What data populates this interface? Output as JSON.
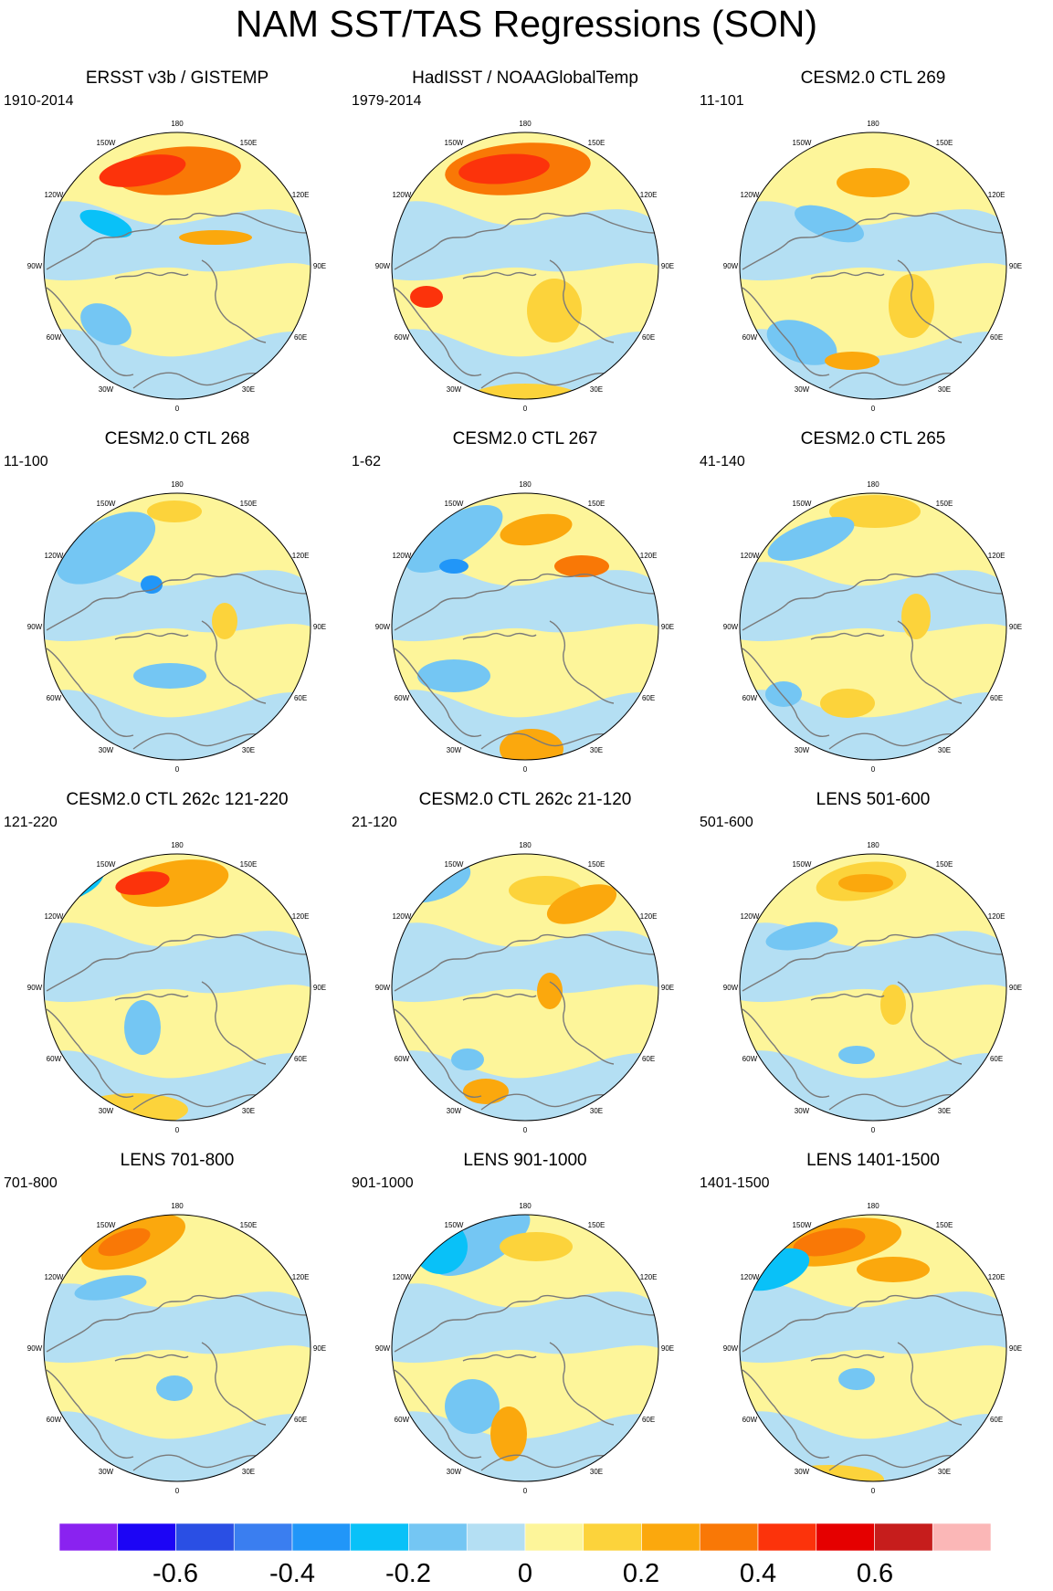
{
  "title": "NAM SST/TAS Regressions (SON)",
  "longitude_labels": {
    "lon180": "180",
    "lon150w": "150W",
    "lon120w": "120W",
    "lon90w": "90W",
    "lon60w": "60W",
    "lon30w": "30W",
    "lon0": "0",
    "lon30e": "30E",
    "lon60e": "60E",
    "lon90e": "90E",
    "lon120e": "120E",
    "lon150e": "150E"
  },
  "panels": [
    {
      "title": "ERSST v3b / GISTEMP",
      "period": "1910-2014"
    },
    {
      "title": "HadISST / NOAAGlobalTemp",
      "period": "1979-2014"
    },
    {
      "title": "CESM2.0 CTL 269",
      "period": "11-101"
    },
    {
      "title": "CESM2.0 CTL 268",
      "period": "11-100"
    },
    {
      "title": "CESM2.0 CTL 267",
      "period": "1-62"
    },
    {
      "title": "CESM2.0 CTL 265",
      "period": "41-140"
    },
    {
      "title": "CESM2.0 CTL 262c 121-220",
      "period": "121-220"
    },
    {
      "title": "CESM2.0 CTL 262c 21-120",
      "period": "21-120"
    },
    {
      "title": "LENS 501-600",
      "period": "501-600"
    },
    {
      "title": "LENS 701-800",
      "period": "701-800"
    },
    {
      "title": "LENS 901-1000",
      "period": "901-1000"
    },
    {
      "title": "LENS 1401-1500",
      "period": "1401-1500"
    }
  ],
  "colorbar": {
    "colors": [
      "#8a22f0",
      "#1c05f5",
      "#2a4fe4",
      "#3a7ef0",
      "#2196f8",
      "#09c1f8",
      "#74c6f3",
      "#b4dff3",
      "#fdf59a",
      "#fcd33b",
      "#fba80d",
      "#f97806",
      "#fc330b",
      "#e50000",
      "#c61d1c",
      "#fbb7b7"
    ],
    "labels": [
      {
        "text": "-0.6",
        "value": -0.6
      },
      {
        "text": "-0.4",
        "value": -0.4
      },
      {
        "text": "-0.2",
        "value": -0.2
      },
      {
        "text": "0",
        "value": 0
      },
      {
        "text": "0.2",
        "value": 0.2
      },
      {
        "text": "0.4",
        "value": 0.4
      },
      {
        "text": "0.6",
        "value": 0.6
      }
    ]
  }
}
